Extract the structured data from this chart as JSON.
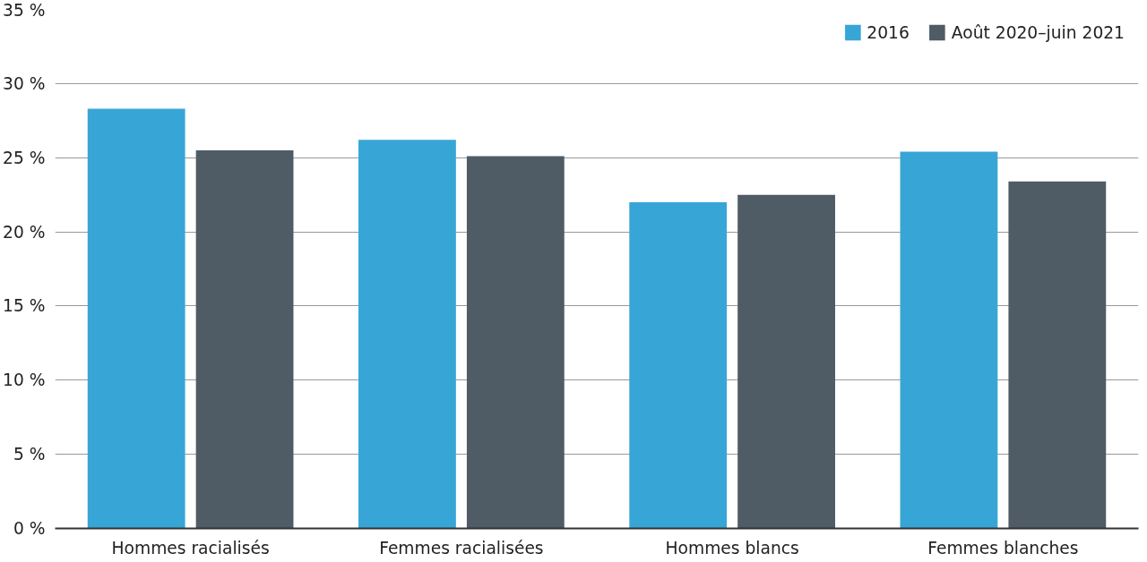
{
  "chart_data": {
    "type": "bar",
    "categories": [
      "Hommes racialisés",
      "Femmes racialisées",
      "Hommes blancs",
      "Femmes blanches"
    ],
    "series": [
      {
        "name": "2016",
        "color": "#37a6d6",
        "values": [
          28.3,
          26.2,
          22.0,
          25.4
        ]
      },
      {
        "name": "Août 2020–juin 2021",
        "color": "#4f5b65",
        "values": [
          25.5,
          25.1,
          22.5,
          23.4
        ]
      }
    ],
    "ylim": [
      0,
      35
    ],
    "yticks": [
      {
        "value": 0,
        "label": "0 %"
      },
      {
        "value": 5,
        "label": "5 %"
      },
      {
        "value": 10,
        "label": "10 %"
      },
      {
        "value": 15,
        "label": "15 %"
      },
      {
        "value": 20,
        "label": "20 %"
      },
      {
        "value": 25,
        "label": "25 %"
      },
      {
        "value": 30,
        "label": "30 %"
      },
      {
        "value": 35,
        "label": "35 %"
      }
    ],
    "grid": "y",
    "legend": "top right"
  }
}
